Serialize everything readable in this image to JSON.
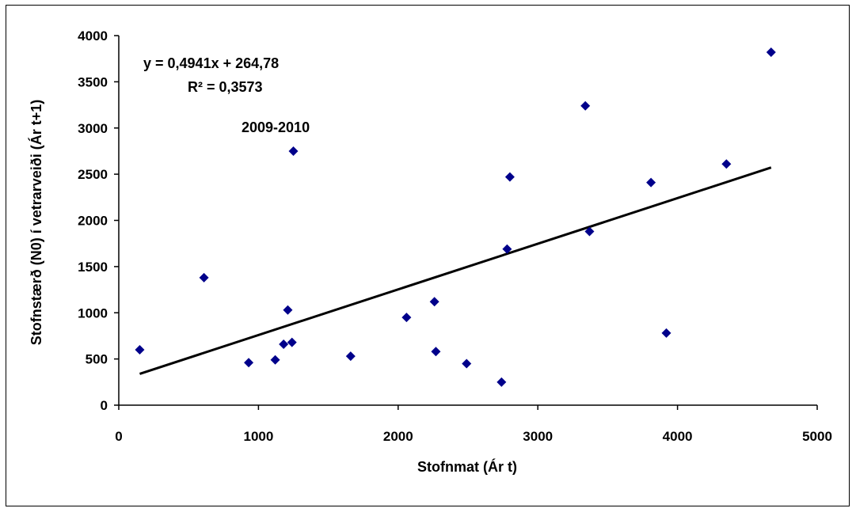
{
  "chart_data": {
    "type": "scatter",
    "title": "",
    "xlabel": "Stofnmat (Ár t)",
    "ylabel": "Stofnstærð (N0) í vetrarveiði  (Ár t+1)",
    "xlim": [
      0,
      5000
    ],
    "ylim": [
      0,
      4000
    ],
    "xticks": [
      0,
      1000,
      2000,
      3000,
      4000,
      5000
    ],
    "yticks": [
      0,
      500,
      1000,
      1500,
      2000,
      2500,
      3000,
      3500,
      4000
    ],
    "grid": false,
    "marker_color": "#00008B",
    "series": [
      {
        "points": [
          {
            "x": 150,
            "y": 600
          },
          {
            "x": 610,
            "y": 1380
          },
          {
            "x": 930,
            "y": 460
          },
          {
            "x": 1120,
            "y": 490
          },
          {
            "x": 1180,
            "y": 660
          },
          {
            "x": 1210,
            "y": 1030
          },
          {
            "x": 1240,
            "y": 680
          },
          {
            "x": 1250,
            "y": 2750
          },
          {
            "x": 1660,
            "y": 530
          },
          {
            "x": 2060,
            "y": 950
          },
          {
            "x": 2260,
            "y": 1120
          },
          {
            "x": 2270,
            "y": 580
          },
          {
            "x": 2490,
            "y": 450
          },
          {
            "x": 2740,
            "y": 250
          },
          {
            "x": 2780,
            "y": 1690
          },
          {
            "x": 2800,
            "y": 2470
          },
          {
            "x": 3340,
            "y": 3240
          },
          {
            "x": 3370,
            "y": 1880
          },
          {
            "x": 3810,
            "y": 2410
          },
          {
            "x": 3920,
            "y": 780
          },
          {
            "x": 4350,
            "y": 2610
          },
          {
            "x": 4670,
            "y": 3820
          }
        ]
      }
    ],
    "trendline": {
      "slope": 0.4941,
      "intercept": 264.78,
      "x_range": [
        150,
        4670
      ],
      "color": "#000000"
    },
    "annotations": {
      "equation": "y = 0,4941x  + 264,78",
      "r_squared": "R² = 0,3573",
      "point_label": "2009-2010"
    }
  }
}
